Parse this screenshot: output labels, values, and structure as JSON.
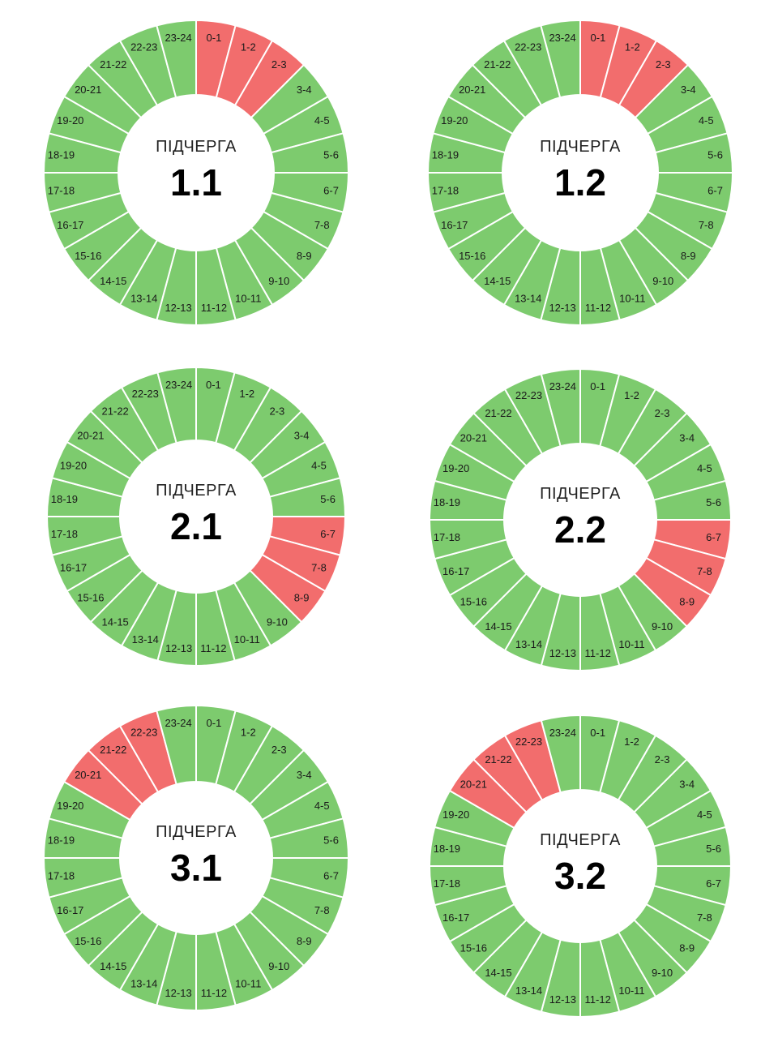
{
  "colors": {
    "on": "#7dcb6e",
    "off": "#f26d6d"
  },
  "center_caption": "ПІДЧЕРГА",
  "hours": [
    "0-1",
    "1-2",
    "2-3",
    "3-4",
    "4-5",
    "5-6",
    "6-7",
    "7-8",
    "8-9",
    "9-10",
    "10-11",
    "11-12",
    "12-13",
    "13-14",
    "14-15",
    "15-16",
    "16-17",
    "17-18",
    "18-19",
    "19-20",
    "20-21",
    "21-22",
    "22-23",
    "23-24"
  ],
  "chart_data": [
    {
      "type": "pie",
      "title": "1.1",
      "off_hours": [
        "0-1",
        "1-2",
        "2-3"
      ]
    },
    {
      "type": "pie",
      "title": "1.2",
      "off_hours": [
        "0-1",
        "1-2",
        "2-3"
      ]
    },
    {
      "type": "pie",
      "title": "2.1",
      "off_hours": [
        "6-7",
        "7-8",
        "8-9"
      ]
    },
    {
      "type": "pie",
      "title": "2.2",
      "off_hours": [
        "6-7",
        "7-8",
        "8-9"
      ]
    },
    {
      "type": "pie",
      "title": "3.1",
      "off_hours": [
        "20-21",
        "21-22",
        "22-23"
      ]
    },
    {
      "type": "pie",
      "title": "3.2",
      "off_hours": [
        "20-21",
        "21-22",
        "22-23"
      ]
    }
  ]
}
